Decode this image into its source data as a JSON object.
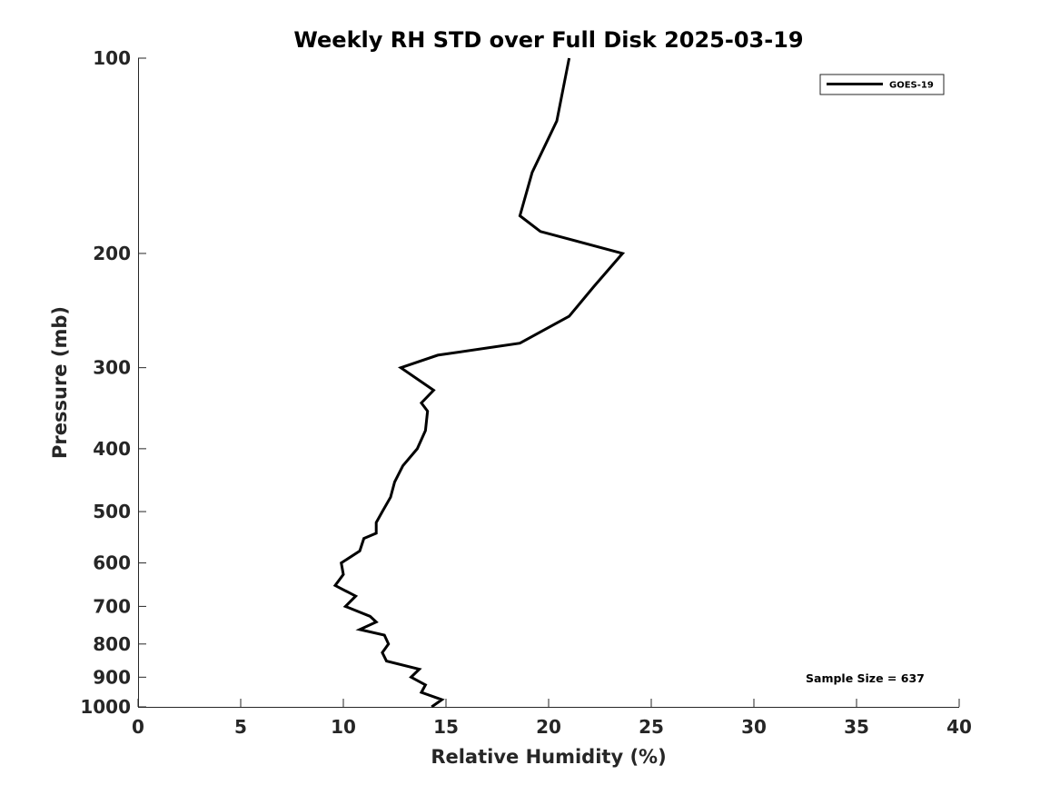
{
  "chart_data": {
    "type": "line",
    "title": "Weekly RH STD over Full Disk 2025-03-19",
    "xlabel": "Relative Humidity (%)",
    "ylabel": "Pressure (mb)",
    "xlim": [
      0,
      40
    ],
    "ylim": [
      100,
      1000
    ],
    "yscale": "log",
    "y_reversed": true,
    "x_ticks": [
      0,
      5,
      10,
      15,
      20,
      25,
      30,
      35,
      40
    ],
    "x_tick_labels": [
      "0",
      "5",
      "10",
      "15",
      "20",
      "25",
      "30",
      "35",
      "40"
    ],
    "y_ticks": [
      100,
      200,
      300,
      400,
      500,
      600,
      700,
      800,
      900,
      1000
    ],
    "y_tick_labels": [
      "100",
      "200",
      "300",
      "400",
      "500",
      "600",
      "700",
      "800",
      "900",
      "1000"
    ],
    "grid": false,
    "legend_position": "top-right",
    "series": [
      {
        "name": "GOES-19",
        "color": "#000000",
        "points": [
          [
            21.0,
            100
          ],
          [
            20.4,
            125
          ],
          [
            19.2,
            150
          ],
          [
            18.6,
            175
          ],
          [
            19.6,
            185
          ],
          [
            23.6,
            200
          ],
          [
            22.2,
            225
          ],
          [
            21.0,
            250
          ],
          [
            18.6,
            275
          ],
          [
            14.6,
            287
          ],
          [
            12.8,
            300
          ],
          [
            14.4,
            325
          ],
          [
            13.8,
            340
          ],
          [
            14.1,
            350
          ],
          [
            14.0,
            375
          ],
          [
            13.6,
            400
          ],
          [
            12.9,
            425
          ],
          [
            12.5,
            450
          ],
          [
            12.3,
            475
          ],
          [
            11.9,
            500
          ],
          [
            11.6,
            520
          ],
          [
            11.6,
            540
          ],
          [
            11.0,
            550
          ],
          [
            10.8,
            575
          ],
          [
            9.9,
            600
          ],
          [
            10.0,
            625
          ],
          [
            9.6,
            650
          ],
          [
            10.6,
            675
          ],
          [
            10.1,
            700
          ],
          [
            11.3,
            725
          ],
          [
            11.6,
            740
          ],
          [
            10.8,
            760
          ],
          [
            12.0,
            775
          ],
          [
            12.2,
            800
          ],
          [
            11.9,
            825
          ],
          [
            12.1,
            850
          ],
          [
            13.7,
            875
          ],
          [
            13.3,
            900
          ],
          [
            14.0,
            925
          ],
          [
            13.8,
            950
          ],
          [
            14.8,
            975
          ],
          [
            14.3,
            1000
          ]
        ]
      }
    ],
    "annotations": [
      "Sample Size = 637"
    ]
  }
}
